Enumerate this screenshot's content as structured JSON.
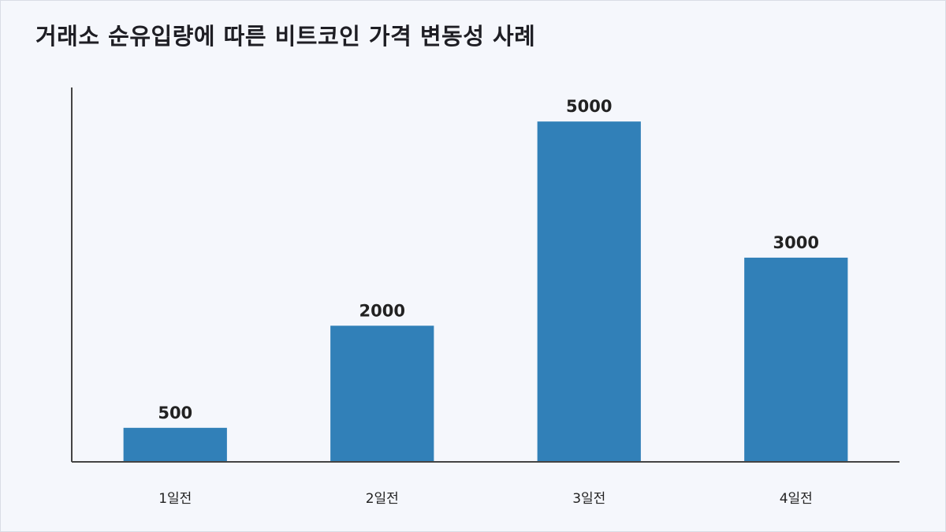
{
  "chart_data": {
    "type": "bar",
    "title": "거래소 순유입량에 따른 비트코인 가격 변동성 사례",
    "categories": [
      "1일전",
      "2일전",
      "3일전",
      "4일전"
    ],
    "values": [
      500,
      2000,
      5000,
      3000
    ],
    "xlabel": "",
    "ylabel": "",
    "ylim": [
      0,
      5500
    ],
    "grid": false,
    "bar_color": "#3180b8",
    "axis_color": "#444444",
    "data_labels": true
  }
}
